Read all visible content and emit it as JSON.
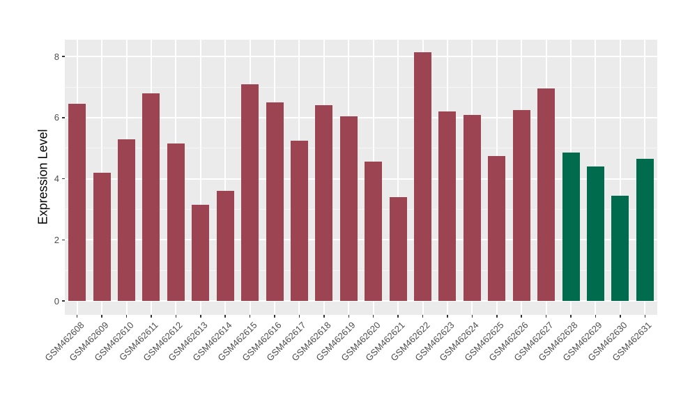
{
  "chart_data": {
    "type": "bar",
    "title": "",
    "xlabel": "",
    "ylabel": "Expression Level",
    "categories": [
      "GSM462608",
      "GSM462609",
      "GSM462610",
      "GSM462611",
      "GSM462612",
      "GSM462613",
      "GSM462614",
      "GSM462615",
      "GSM462616",
      "GSM462617",
      "GSM462618",
      "GSM462619",
      "GSM462620",
      "GSM462621",
      "GSM462622",
      "GSM462623",
      "GSM462624",
      "GSM462625",
      "GSM462626",
      "GSM462627",
      "GSM462628",
      "GSM462629",
      "GSM462630",
      "GSM462631"
    ],
    "values": [
      6.45,
      4.2,
      5.3,
      6.8,
      5.15,
      3.15,
      3.6,
      7.1,
      6.5,
      5.25,
      6.4,
      6.05,
      4.55,
      3.4,
      8.15,
      6.2,
      6.1,
      4.75,
      6.25,
      6.95,
      4.85,
      4.4,
      3.45,
      4.65
    ],
    "bar_groups": [
      "group1",
      "group1",
      "group1",
      "group1",
      "group1",
      "group1",
      "group1",
      "group1",
      "group1",
      "group1",
      "group1",
      "group1",
      "group1",
      "group1",
      "group1",
      "group1",
      "group1",
      "group1",
      "group1",
      "group1",
      "group2",
      "group2",
      "group2",
      "group2"
    ],
    "palette": {
      "group1": "#9C4452",
      "group2": "#006B4D"
    },
    "yticks": [
      "0",
      "2",
      "4",
      "6",
      "8"
    ],
    "ytick_values": [
      0,
      2,
      4,
      6,
      8
    ],
    "yminor_values": [
      1,
      3,
      5,
      7
    ],
    "ylim": [
      -0.46,
      8.55
    ],
    "grid": "white major and minor horizontal lines, white vertical lines at category centers, on gray panel",
    "legend_position": "none",
    "panel_bg": "#EBEBEB",
    "gridline_color": "#FFFFFF",
    "axis_text_color": "#4D4D4D",
    "axis_title_color": "#000000",
    "x_label_rotation_deg": 45
  }
}
